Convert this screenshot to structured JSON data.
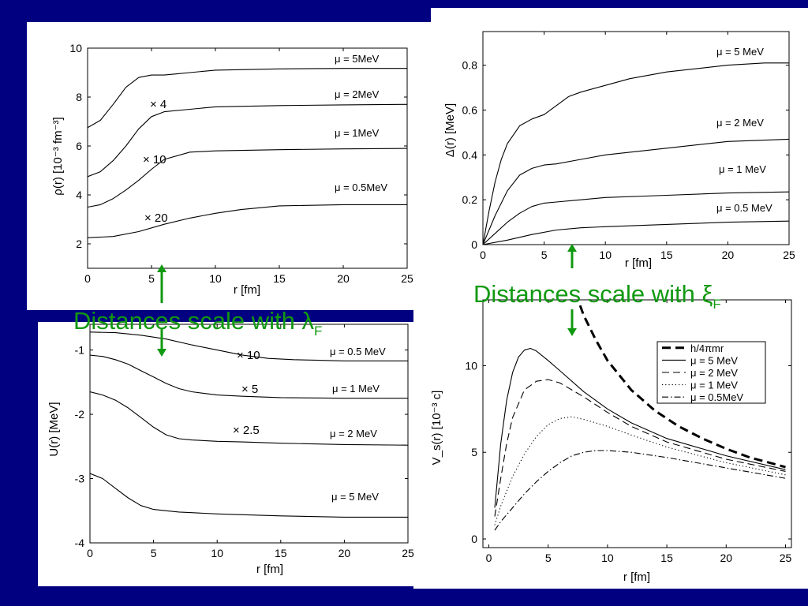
{
  "slide": {
    "background": "#000080",
    "accent_color": "#119911",
    "annotations": [
      {
        "text": "Distances scale with λ",
        "subscript": "F"
      },
      {
        "text": "Distances scale with ξ",
        "subscript": "F"
      }
    ]
  },
  "chart_data": [
    {
      "type": "line",
      "xlabel": "r [fm]",
      "ylabel": "ρ(r) [10⁻³ fm⁻³]",
      "xlim": [
        0,
        25
      ],
      "ylim": [
        1,
        10
      ],
      "xticks": [
        "0",
        "5",
        "10",
        "15",
        "20",
        "25"
      ],
      "yticks": [
        "2",
        "4",
        "6",
        "8",
        "10"
      ],
      "series": [
        {
          "name": "μ = 5MeV",
          "x": [
            0,
            1,
            2,
            3,
            4,
            5,
            6,
            7,
            8,
            10,
            15,
            20,
            25
          ],
          "y": [
            6.75,
            7.05,
            7.7,
            8.4,
            8.8,
            8.9,
            8.9,
            8.95,
            9.0,
            9.1,
            9.15,
            9.17,
            9.17
          ]
        },
        {
          "name": "μ = 2MeV",
          "x": [
            0,
            1,
            2,
            3,
            4,
            5,
            6,
            8,
            10,
            15,
            20,
            25
          ],
          "y": [
            4.75,
            4.95,
            5.4,
            6.0,
            6.7,
            7.2,
            7.4,
            7.5,
            7.6,
            7.65,
            7.68,
            7.7
          ]
        },
        {
          "name": "μ = 1MeV",
          "x": [
            0,
            1,
            2,
            3,
            4,
            5,
            6,
            8,
            10,
            15,
            20,
            25
          ],
          "y": [
            3.5,
            3.6,
            3.85,
            4.2,
            4.6,
            5.05,
            5.45,
            5.75,
            5.8,
            5.85,
            5.88,
            5.9
          ]
        },
        {
          "name": "μ = 0.5MeV",
          "x": [
            0,
            2,
            4,
            6,
            8,
            10,
            12,
            15,
            20,
            25
          ],
          "y": [
            2.25,
            2.3,
            2.5,
            2.8,
            3.05,
            3.25,
            3.4,
            3.55,
            3.6,
            3.6
          ]
        }
      ],
      "annotations": [
        "× 4",
        "× 10",
        "× 20"
      ]
    },
    {
      "type": "line",
      "xlabel": "r [fm]",
      "ylabel": "Δ(r) [MeV]",
      "xlim": [
        0,
        25
      ],
      "ylim": [
        0,
        0.95
      ],
      "xticks": [
        "0",
        "5",
        "10",
        "15",
        "20",
        "25"
      ],
      "yticks": [
        "0",
        "0.2",
        "0.4",
        "0.6",
        "0.8"
      ],
      "series": [
        {
          "name": "μ = 5 MeV",
          "x": [
            0,
            0.5,
            1,
            1.5,
            2,
            3,
            4,
            5,
            6,
            7,
            8,
            10,
            12,
            15,
            20,
            23,
            25
          ],
          "y": [
            0,
            0.15,
            0.28,
            0.38,
            0.45,
            0.53,
            0.56,
            0.58,
            0.62,
            0.66,
            0.68,
            0.71,
            0.74,
            0.77,
            0.8,
            0.81,
            0.81
          ]
        },
        {
          "name": "μ = 2 MeV",
          "x": [
            0,
            1,
            2,
            3,
            4,
            5,
            6,
            8,
            10,
            15,
            20,
            25
          ],
          "y": [
            0,
            0.13,
            0.24,
            0.31,
            0.34,
            0.355,
            0.36,
            0.38,
            0.4,
            0.43,
            0.46,
            0.47
          ]
        },
        {
          "name": "μ = 1 MeV",
          "x": [
            0,
            1,
            2,
            3,
            4,
            5,
            6,
            8,
            10,
            15,
            20,
            25
          ],
          "y": [
            0,
            0.05,
            0.1,
            0.14,
            0.17,
            0.185,
            0.19,
            0.2,
            0.21,
            0.22,
            0.23,
            0.235
          ]
        },
        {
          "name": "μ = 0.5 MeV",
          "x": [
            0,
            2,
            4,
            6,
            8,
            10,
            15,
            20,
            25
          ],
          "y": [
            0,
            0.02,
            0.045,
            0.065,
            0.075,
            0.08,
            0.09,
            0.1,
            0.105
          ]
        }
      ]
    },
    {
      "type": "line",
      "xlabel": "r [fm]",
      "ylabel": "U(r) [MeV]",
      "xlim": [
        0,
        25
      ],
      "ylim": [
        -4,
        -0.6
      ],
      "xticks": [
        "0",
        "5",
        "10",
        "15",
        "20",
        "25"
      ],
      "yticks": [
        "-1",
        "-2",
        "-3",
        "-4"
      ],
      "series": [
        {
          "name": "μ = 0.5 MeV",
          "x": [
            0,
            2,
            4,
            6,
            8,
            10,
            12,
            14,
            16,
            18,
            20,
            25
          ],
          "y": [
            -0.72,
            -0.73,
            -0.77,
            -0.83,
            -0.92,
            -1.0,
            -1.08,
            -1.13,
            -1.15,
            -1.16,
            -1.17,
            -1.17
          ]
        },
        {
          "name": "μ = 1 MeV",
          "x": [
            0,
            1,
            2,
            3,
            4,
            5,
            6,
            7,
            8,
            10,
            12,
            15,
            20,
            25
          ],
          "y": [
            -1.08,
            -1.1,
            -1.15,
            -1.22,
            -1.32,
            -1.42,
            -1.52,
            -1.6,
            -1.65,
            -1.7,
            -1.72,
            -1.74,
            -1.75,
            -1.75
          ]
        },
        {
          "name": "μ = 2 MeV",
          "x": [
            0,
            1,
            2,
            3,
            4,
            5,
            6,
            7,
            8,
            10,
            12,
            15,
            20,
            25
          ],
          "y": [
            -1.65,
            -1.7,
            -1.78,
            -1.9,
            -2.05,
            -2.2,
            -2.32,
            -2.38,
            -2.4,
            -2.42,
            -2.43,
            -2.45,
            -2.47,
            -2.48
          ]
        },
        {
          "name": "μ = 5 MeV",
          "x": [
            0,
            1,
            2,
            3,
            4,
            5,
            6,
            7,
            8,
            10,
            15,
            20,
            25
          ],
          "y": [
            -2.92,
            -3.0,
            -3.15,
            -3.3,
            -3.42,
            -3.48,
            -3.5,
            -3.52,
            -3.53,
            -3.55,
            -3.58,
            -3.6,
            -3.6
          ]
        }
      ],
      "annotations": [
        "× 10",
        "× 5",
        "× 2.5"
      ]
    },
    {
      "type": "line",
      "xlabel": "r [fm]",
      "ylabel": "V_s(r) [10⁻³ c]",
      "xlim": [
        -0.5,
        25.5
      ],
      "ylim": [
        -0.5,
        13.8
      ],
      "xticks": [
        "0",
        "5",
        "10",
        "15",
        "20",
        "25"
      ],
      "yticks": [
        "0",
        "5",
        "10"
      ],
      "legend": "top-right",
      "series": [
        {
          "name": "h/4πmr",
          "style": "thick-dashed",
          "x": [
            7.3,
            8,
            9,
            10,
            12,
            14,
            16,
            18,
            20,
            22,
            25
          ],
          "y": [
            14.2,
            12.9,
            11.5,
            10.3,
            8.6,
            7.4,
            6.5,
            5.8,
            5.2,
            4.7,
            4.15
          ]
        },
        {
          "name": "μ = 5 MeV",
          "style": "solid",
          "x": [
            0.5,
            1,
            1.5,
            2,
            2.5,
            3,
            3.5,
            4,
            5,
            6,
            8,
            10,
            12,
            15,
            20,
            25
          ],
          "y": [
            1.8,
            5.5,
            8.0,
            9.6,
            10.5,
            10.9,
            11.0,
            10.85,
            10.3,
            9.7,
            8.5,
            7.5,
            6.7,
            5.8,
            4.8,
            4.0
          ]
        },
        {
          "name": "μ = 2 MeV",
          "style": "dashed",
          "x": [
            0.5,
            1,
            1.5,
            2,
            3,
            4,
            5,
            6,
            8,
            10,
            12,
            15,
            20,
            25
          ],
          "y": [
            1.3,
            3.5,
            5.5,
            7.0,
            8.6,
            9.1,
            9.2,
            9.0,
            8.2,
            7.3,
            6.5,
            5.6,
            4.6,
            3.9
          ]
        },
        {
          "name": "μ = 1 MeV",
          "style": "dotted",
          "x": [
            0.5,
            1,
            2,
            3,
            4,
            5,
            6,
            7,
            8,
            10,
            12,
            15,
            20,
            25
          ],
          "y": [
            0.8,
            1.9,
            3.6,
            4.9,
            5.9,
            6.6,
            6.95,
            7.05,
            6.9,
            6.5,
            6.0,
            5.3,
            4.4,
            3.7
          ]
        },
        {
          "name": "μ = 0.5MeV",
          "style": "dash-dot",
          "x": [
            0.5,
            1,
            2,
            3,
            4,
            5,
            6,
            7,
            8,
            9,
            10,
            12,
            15,
            20,
            25
          ],
          "y": [
            0.5,
            1.0,
            1.8,
            2.6,
            3.3,
            3.9,
            4.4,
            4.8,
            5.0,
            5.1,
            5.1,
            5.0,
            4.7,
            4.1,
            3.5
          ]
        }
      ]
    }
  ]
}
